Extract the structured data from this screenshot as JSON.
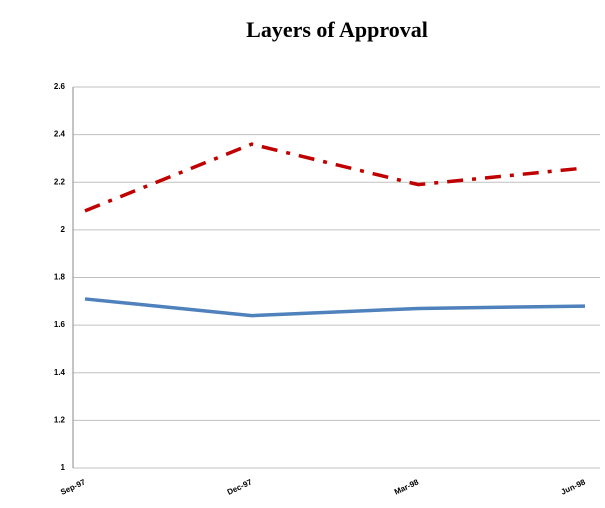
{
  "chart_data": {
    "type": "line",
    "title": "Layers of Approval",
    "categories": [
      "Sep-97",
      "Dec-97",
      "Mar-98",
      "Jun-98"
    ],
    "series": [
      {
        "color": "#4f81bd",
        "line_style": "solid",
        "values": [
          1.71,
          1.64,
          1.67,
          1.68
        ]
      },
      {
        "color": "#c00000",
        "line_style": "dashdot",
        "values": [
          2.08,
          2.36,
          2.19,
          2.26
        ]
      }
    ],
    "ylim": [
      1,
      2.6
    ],
    "yticks": [
      1,
      1.2,
      1.4,
      1.6,
      1.8,
      2,
      2.2,
      2.4,
      2.6
    ],
    "grid": true
  }
}
